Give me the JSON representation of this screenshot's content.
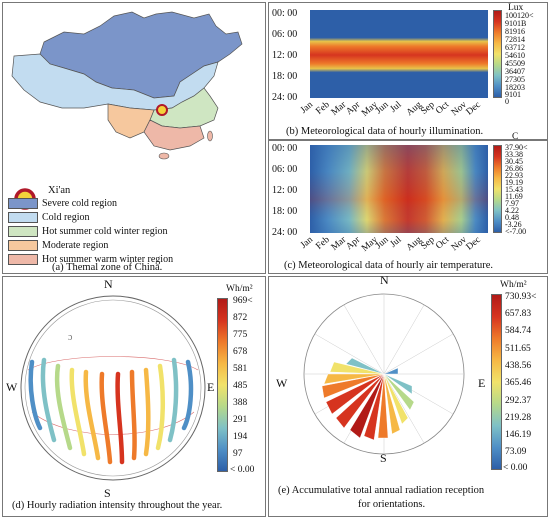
{
  "panel_a": {
    "caption": "(a) Themal zone of China.",
    "city": "Xi'an",
    "legend": [
      {
        "label": "Severe cold region",
        "color": "#7b95c9"
      },
      {
        "label": "Cold region",
        "color": "#c2dcf0"
      },
      {
        "label": "Hot summer cold winter region",
        "color": "#cfe6c2"
      },
      {
        "label": "Moderate region",
        "color": "#f6c89e"
      },
      {
        "label": "Hot summer warm winter region",
        "color": "#eeb8a8"
      }
    ]
  },
  "panel_b": {
    "caption": "(b) Meteorological data of hourly illumination.",
    "unit": "Lux",
    "hours": [
      "00: 00",
      "06: 00",
      "12: 00",
      "18: 00",
      "24: 00"
    ],
    "months": [
      "Jan",
      "Feb",
      "Mar",
      "Apr",
      "May",
      "Jun",
      "Jul",
      "Aug",
      "Sep",
      "Oct",
      "Nov",
      "Dec"
    ],
    "scale": [
      "100120<",
      "9101B",
      "81916",
      "72814",
      "63712",
      "54610",
      "45509",
      "36407",
      "27305",
      "18203",
      "9101",
      "0"
    ]
  },
  "panel_c": {
    "caption": "(c) Meteorological data of hourly air temperature.",
    "unit": "C",
    "hours": [
      "00: 00",
      "06: 00",
      "12: 00",
      "18: 00",
      "24: 00"
    ],
    "months": [
      "Jan",
      "Feb",
      "Mar",
      "Apr",
      "May",
      "Jun",
      "Jul",
      "Aug",
      "Sep",
      "Oct",
      "Nov",
      "Dec"
    ],
    "scale": [
      "37.90<",
      "33.38",
      "30.45",
      "26.86",
      "22.93",
      "19.19",
      "15.43",
      "11.69",
      "7.97",
      "4.22",
      "0.48",
      "-3.26",
      "<-7.00"
    ]
  },
  "panel_d": {
    "caption": "(d)  Hourly radiation intensity throughout the year.",
    "unit": "Wh/m²",
    "compass": {
      "n": "N",
      "s": "S",
      "e": "E",
      "w": "W"
    },
    "scale": [
      "969<",
      "872",
      "775",
      "678",
      "581",
      "485",
      "388",
      "291",
      "194",
      "97",
      "< 0.00"
    ]
  },
  "panel_e": {
    "caption_line1": "(e)   Accumulative total annual radiation reception",
    "caption_line2": "for orientations.",
    "unit": "Wh/m²",
    "compass": {
      "n": "N",
      "s": "S",
      "e": "E",
      "w": "W"
    },
    "scale": [
      "730.93<",
      "657.83",
      "584.74",
      "511.65",
      "438.56",
      "365.46",
      "292.37",
      "219.28",
      "146.19",
      "73.09",
      "< 0.00"
    ]
  },
  "colors": {
    "ramp": [
      "#2d5fa8",
      "#4f8fc6",
      "#7fc1c6",
      "#b6d98a",
      "#f1e26a",
      "#f6b845",
      "#ee7a2a",
      "#d6341f",
      "#b11a17"
    ],
    "frame": "#777777"
  }
}
